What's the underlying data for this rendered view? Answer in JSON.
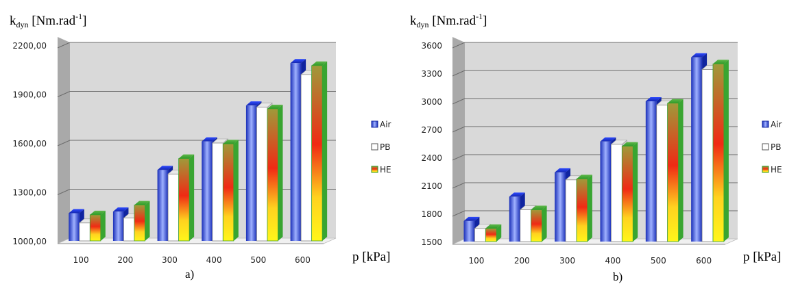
{
  "colors": {
    "Air": "#1f37d6",
    "PB": "#ffffff",
    "HE": "#f23a12",
    "plot_background": "#d9d9d9",
    "floor": "#f0f0f0",
    "wall_side": "#a9a9a9",
    "gridline": "#6b6b6b"
  },
  "chart_data": [
    {
      "type": "bar",
      "panel_label": "a)",
      "ylabel": "k",
      "ylabel_sub": "dyn",
      "ylabel_unit": " [Nm.rad",
      "ylabel_sup": "-1",
      "ylabel_close": "]",
      "xlabel": "p [kPa]",
      "categories": [
        "100",
        "200",
        "300",
        "400",
        "500",
        "600"
      ],
      "ylim": [
        1000,
        2200
      ],
      "yticks": [
        "1000,00",
        "1300,00",
        "1600,00",
        "1900,00",
        "2200,00"
      ],
      "ytick_values": [
        1000,
        1300,
        1600,
        1900,
        2200
      ],
      "grid": true,
      "legend_position": "right",
      "series": [
        {
          "name": "Air",
          "values": [
            1170,
            1180,
            1435,
            1610,
            1830,
            2090
          ]
        },
        {
          "name": "PB",
          "values": [
            1110,
            1140,
            1410,
            1600,
            1820,
            2020
          ]
        },
        {
          "name": "HE",
          "values": [
            1160,
            1220,
            1505,
            1595,
            1810,
            2075
          ]
        }
      ]
    },
    {
      "type": "bar",
      "panel_label": "b)",
      "ylabel": "k",
      "ylabel_sub": "dyn",
      "ylabel_unit": " [Nm.rad",
      "ylabel_sup": "-1",
      "ylabel_close": "]",
      "xlabel": "p [kPa]",
      "categories": [
        "100",
        "200",
        "300",
        "400",
        "500",
        "600"
      ],
      "ylim": [
        1500,
        3600
      ],
      "yticks": [
        "1500",
        "1800",
        "2100",
        "2400",
        "2700",
        "3000",
        "3300",
        "3600"
      ],
      "ytick_values": [
        1500,
        1800,
        2100,
        2400,
        2700,
        3000,
        3300,
        3600
      ],
      "grid": true,
      "legend_position": "right",
      "series": [
        {
          "name": "Air",
          "values": [
            1720,
            1980,
            2240,
            2570,
            3000,
            3470
          ]
        },
        {
          "name": "PB",
          "values": [
            1640,
            1840,
            2160,
            2540,
            2960,
            3340
          ]
        },
        {
          "name": "HE",
          "values": [
            1640,
            1840,
            2170,
            2520,
            2980,
            3400
          ]
        }
      ]
    }
  ]
}
